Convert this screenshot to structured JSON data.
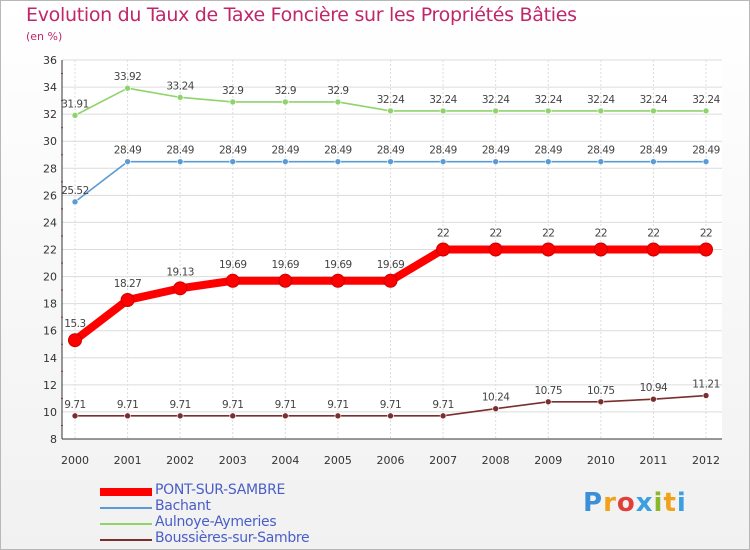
{
  "title": "Evolution du Taux de Taxe Foncière sur les Propriétés Bâties",
  "subtitle": "(en %)",
  "logo": {
    "letters": [
      "P",
      "r",
      "o",
      "x",
      "i",
      "t",
      "i"
    ],
    "colors": [
      "#3b8fd8",
      "#f2a21a",
      "#e0403a",
      "#3aa0e0",
      "#8ab82a",
      "#f2a21a",
      "#3aa0e0"
    ]
  },
  "chart_data": {
    "type": "line",
    "title": "Evolution du Taux de Taxe Foncière sur les Propriétés Bâties",
    "ylabel": "(en %)",
    "xlabel": "",
    "ylim": [
      8,
      36
    ],
    "yticks": [
      8,
      10,
      12,
      14,
      16,
      18,
      20,
      22,
      24,
      26,
      28,
      30,
      32,
      34,
      36
    ],
    "categories": [
      "2000",
      "2001",
      "2002",
      "2003",
      "2004",
      "2005",
      "2006",
      "2007",
      "2008",
      "2009",
      "2010",
      "2011",
      "2012"
    ],
    "grid": true,
    "series": [
      {
        "name": "PONT-SUR-SAMBRE",
        "color": "#ff0000",
        "values": [
          15.3,
          18.27,
          19.13,
          19.69,
          19.69,
          19.69,
          19.69,
          22,
          22,
          22,
          22,
          22,
          22
        ],
        "labels": [
          "15.3",
          "18.27",
          "19.13",
          "19.69",
          "19.69",
          "19.69",
          "19.69",
          "22",
          "22",
          "22",
          "22",
          "22",
          "22"
        ]
      },
      {
        "name": "Bachant",
        "color": "#5b9bd5",
        "values": [
          25.52,
          28.49,
          28.49,
          28.49,
          28.49,
          28.49,
          28.49,
          28.49,
          28.49,
          28.49,
          28.49,
          28.49,
          28.49
        ],
        "labels": [
          "25.52",
          "28.49",
          "28.49",
          "28.49",
          "28.49",
          "28.49",
          "28.49",
          "28.49",
          "28.49",
          "28.49",
          "28.49",
          "28.49",
          "28.49"
        ]
      },
      {
        "name": "Aulnoye-Aymeries",
        "color": "#8fd36b",
        "values": [
          31.91,
          33.92,
          33.24,
          32.9,
          32.9,
          32.9,
          32.24,
          32.24,
          32.24,
          32.24,
          32.24,
          32.24,
          32.24
        ],
        "labels": [
          "31.91",
          "33.92",
          "33.24",
          "32.9",
          "32.9",
          "32.9",
          "32.24",
          "32.24",
          "32.24",
          "32.24",
          "32.24",
          "32.24",
          "32.24"
        ]
      },
      {
        "name": "Boussières-sur-Sambre",
        "color": "#7a2e2e",
        "values": [
          9.71,
          9.71,
          9.71,
          9.71,
          9.71,
          9.71,
          9.71,
          9.71,
          10.24,
          10.75,
          10.75,
          10.94,
          11.21
        ],
        "labels": [
          "9.71",
          "9.71",
          "9.71",
          "9.71",
          "9.71",
          "9.71",
          "9.71",
          "9.71",
          "10.24",
          "10.75",
          "10.75",
          "10.94",
          "11.21"
        ]
      }
    ]
  }
}
